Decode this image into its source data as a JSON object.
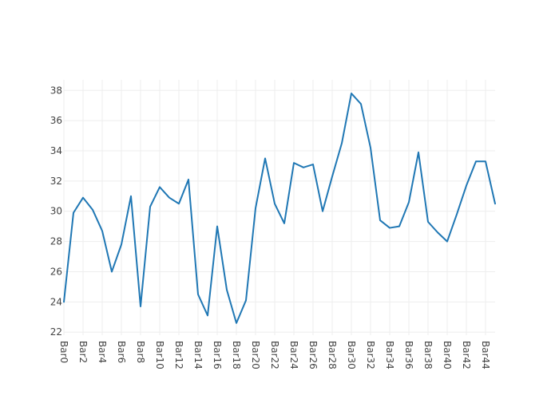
{
  "chart_data": {
    "type": "line",
    "title": "",
    "xlabel": "",
    "ylabel": "",
    "categories": [
      "Bar0",
      "Bar1",
      "Bar2",
      "Bar3",
      "Bar4",
      "Bar5",
      "Bar6",
      "Bar7",
      "Bar8",
      "Bar9",
      "Bar10",
      "Bar11",
      "Bar12",
      "Bar13",
      "Bar14",
      "Bar15",
      "Bar16",
      "Bar17",
      "Bar18",
      "Bar19",
      "Bar20",
      "Bar21",
      "Bar22",
      "Bar23",
      "Bar24",
      "Bar25",
      "Bar26",
      "Bar27",
      "Bar28",
      "Bar29",
      "Bar30",
      "Bar31",
      "Bar32",
      "Bar33",
      "Bar34",
      "Bar35",
      "Bar36",
      "Bar37",
      "Bar38",
      "Bar39",
      "Bar40",
      "Bar41",
      "Bar42",
      "Bar43",
      "Bar44",
      "Bar45"
    ],
    "x_tick_labels": [
      "Bar0",
      "Bar2",
      "Bar4",
      "Bar6",
      "Bar8",
      "Bar10",
      "Bar12",
      "Bar14",
      "Bar16",
      "Bar18",
      "Bar20",
      "Bar22",
      "Bar24",
      "Bar26",
      "Bar28",
      "Bar30",
      "Bar32",
      "Bar34",
      "Bar36",
      "Bar38",
      "Bar40",
      "Bar42",
      "Bar44"
    ],
    "y_tick_labels": [
      "22",
      "24",
      "26",
      "28",
      "30",
      "32",
      "34",
      "36",
      "38"
    ],
    "ylim": [
      21.8,
      38.7
    ],
    "grid": true,
    "legend": "none",
    "series": [
      {
        "color": "#1f77b4",
        "values": [
          24.0,
          29.9,
          30.9,
          30.1,
          28.7,
          26.0,
          27.8,
          31.0,
          23.7,
          30.3,
          31.6,
          30.9,
          30.5,
          32.1,
          24.5,
          23.1,
          29.0,
          24.8,
          22.6,
          24.1,
          30.2,
          33.5,
          30.5,
          29.2,
          33.2,
          32.9,
          33.1,
          30.0,
          32.3,
          34.5,
          37.8,
          37.1,
          34.2,
          29.4,
          28.9,
          29.0,
          30.6,
          33.9,
          29.3,
          28.6,
          28.0,
          29.8,
          31.7,
          33.3,
          33.3,
          30.5
        ]
      }
    ]
  }
}
